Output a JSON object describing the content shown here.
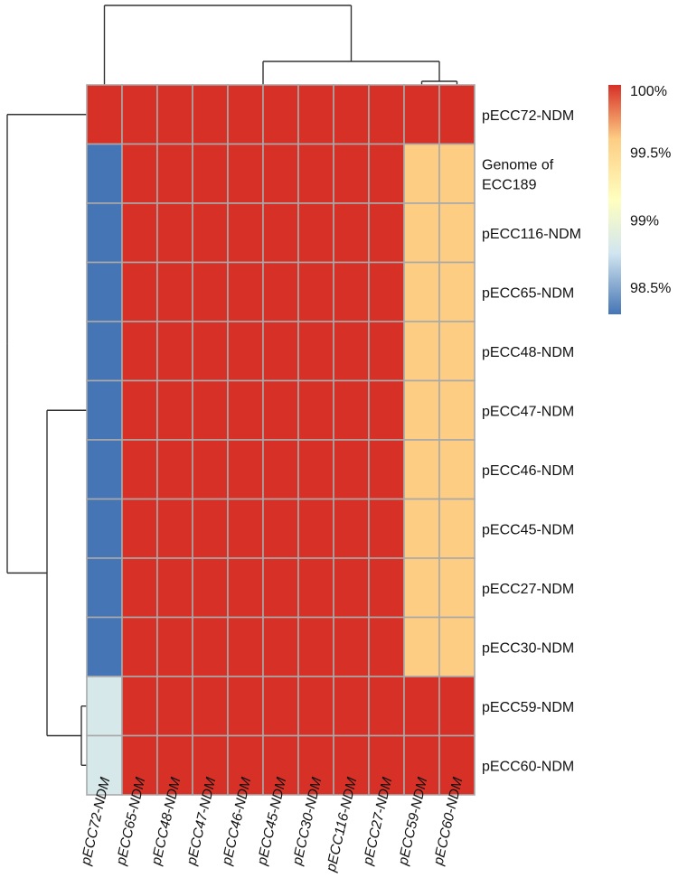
{
  "chart_data": {
    "type": "heatmap",
    "title": "",
    "rows": [
      "pECC72-NDM",
      "Genome of ECC189",
      "pECC116-NDM",
      "pECC65-NDM",
      "pECC48-NDM",
      "pECC47-NDM",
      "pECC46-NDM",
      "pECC45-NDM",
      "pECC27-NDM",
      "pECC30-NDM",
      "pECC59-NDM",
      "pECC60-NDM"
    ],
    "row_display": [
      [
        "pECC72-NDM"
      ],
      [
        "Genome of",
        "ECC189"
      ],
      [
        "pECC116-NDM"
      ],
      [
        "pECC65-NDM"
      ],
      [
        "pECC48-NDM"
      ],
      [
        "pECC47-NDM"
      ],
      [
        "pECC46-NDM"
      ],
      [
        "pECC45-NDM"
      ],
      [
        "pECC27-NDM"
      ],
      [
        "pECC30-NDM"
      ],
      [
        "pECC59-NDM"
      ],
      [
        "pECC60-NDM"
      ]
    ],
    "columns": [
      "pECC72-NDM",
      "pECC65-NDM",
      "pECC48-NDM",
      "pECC47-NDM",
      "pECC46-NDM",
      "pECC45-NDM",
      "pECC30-NDM",
      "pECC116-NDM",
      "pECC27-NDM",
      "pECC59-NDM",
      "pECC60-NDM"
    ],
    "values": [
      [
        100,
        100,
        100,
        100,
        100,
        100,
        100,
        100,
        100,
        100,
        100
      ],
      [
        98.3,
        100,
        100,
        100,
        100,
        100,
        100,
        100,
        100,
        99.6,
        99.6
      ],
      [
        98.3,
        100,
        100,
        100,
        100,
        100,
        100,
        100,
        100,
        99.6,
        99.6
      ],
      [
        98.3,
        100,
        100,
        100,
        100,
        100,
        100,
        100,
        100,
        99.6,
        99.6
      ],
      [
        98.3,
        100,
        100,
        100,
        100,
        100,
        100,
        100,
        100,
        99.6,
        99.6
      ],
      [
        98.3,
        100,
        100,
        100,
        100,
        100,
        100,
        100,
        100,
        99.6,
        99.6
      ],
      [
        98.3,
        100,
        100,
        100,
        100,
        100,
        100,
        100,
        100,
        99.6,
        99.6
      ],
      [
        98.3,
        100,
        100,
        100,
        100,
        100,
        100,
        100,
        100,
        99.6,
        99.6
      ],
      [
        98.3,
        100,
        100,
        100,
        100,
        100,
        100,
        100,
        100,
        99.6,
        99.6
      ],
      [
        98.3,
        100,
        100,
        100,
        100,
        100,
        100,
        100,
        100,
        99.6,
        99.6
      ],
      [
        98.8,
        100,
        100,
        100,
        100,
        100,
        100,
        100,
        100,
        100,
        100
      ],
      [
        98.8,
        100,
        100,
        100,
        100,
        100,
        100,
        100,
        100,
        100,
        100
      ]
    ],
    "color_scale": {
      "min": 98.3,
      "max": 100,
      "stops": [
        {
          "value": 98.3,
          "color": "#4575b4"
        },
        {
          "value": 98.75,
          "color": "#d1e5f0"
        },
        {
          "value": 99.15,
          "color": "#ffffbf"
        },
        {
          "value": 99.6,
          "color": "#fdcd83"
        },
        {
          "value": 100,
          "color": "#d73027"
        }
      ],
      "ticks": [
        {
          "value": 100,
          "label": "100%"
        },
        {
          "value": 99.5,
          "label": "99.5%"
        },
        {
          "value": 99,
          "label": "99%"
        },
        {
          "value": 98.5,
          "label": "98.5%"
        }
      ]
    },
    "row_dendrogram": "(pECC72-NDM,(((Genome of ECC189,pECC116-NDM,pECC65-NDM,pECC48-NDM,pECC47-NDM,pECC46-NDM,pECC45-NDM,pECC27-NDM,pECC30-NDM)),(pECC59-NDM,pECC60-NDM)))",
    "column_dendrogram": "(pECC72-NDM,((pECC65-NDM,pECC48-NDM,pECC47-NDM,pECC46-NDM,pECC45-NDM,pECC30-NDM,pECC116-NDM,pECC27-NDM),(pECC59-NDM,pECC60-NDM)))"
  }
}
